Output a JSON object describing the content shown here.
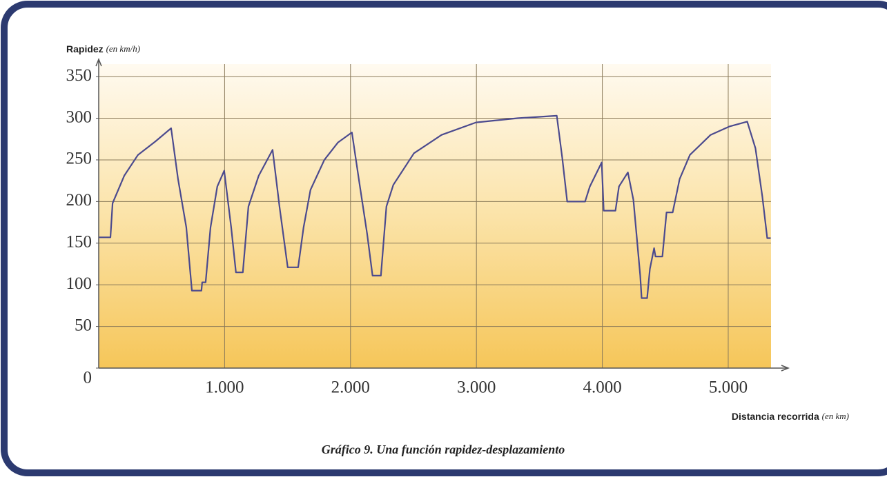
{
  "chart_data": {
    "type": "line",
    "caption": "Gráfico 9. Una función rapidez-desplazamiento",
    "y_label": "Rapidez",
    "y_label_unit": "(en km/h)",
    "x_label": "Distancia recorrida",
    "x_label_unit": "(en km)",
    "xlim": [
      0,
      5340
    ],
    "ylim": [
      0,
      365
    ],
    "xticks": [
      {
        "value": 1000,
        "label": "1.000"
      },
      {
        "value": 2000,
        "label": "2.000"
      },
      {
        "value": 3000,
        "label": "3.000"
      },
      {
        "value": 4000,
        "label": "4.000"
      },
      {
        "value": 5000,
        "label": "5.000"
      }
    ],
    "yticks": [
      0,
      50,
      100,
      150,
      200,
      250,
      300,
      350
    ],
    "grid": true,
    "series": [
      {
        "color": "#4b4a8e",
        "x": [
          0,
          93,
          110,
          203,
          312,
          449,
          575,
          630,
          696,
          740,
          816,
          822,
          849,
          888,
          942,
          997,
          1052,
          1090,
          1145,
          1189,
          1271,
          1381,
          1436,
          1501,
          1584,
          1627,
          1682,
          1792,
          1901,
          2011,
          2066,
          2132,
          2175,
          2241,
          2285,
          2340,
          2504,
          2723,
          2997,
          3326,
          3638,
          3682,
          3721,
          3863,
          3901,
          3995,
          4011,
          4104,
          4132,
          4203,
          4247,
          4301,
          4312,
          4356,
          4378,
          4411,
          4422,
          4477,
          4510,
          4559,
          4614,
          4696,
          4860,
          5008,
          5151,
          5216,
          5271,
          5310,
          5337
        ],
        "values": [
          157,
          157,
          198,
          231,
          256,
          272,
          288,
          227,
          169,
          93,
          93,
          103,
          103,
          169,
          218,
          237,
          169,
          115,
          115,
          194,
          231,
          262,
          194,
          121,
          121,
          169,
          214,
          250,
          271,
          283,
          227,
          161,
          111,
          111,
          194,
          220,
          258,
          280,
          295,
          300,
          303,
          252,
          200,
          200,
          218,
          247,
          189,
          189,
          218,
          235,
          202,
          111,
          84,
          84,
          119,
          144,
          134,
          134,
          187,
          187,
          227,
          256,
          280,
          290,
          296,
          264,
          206,
          156,
          156
        ]
      }
    ]
  }
}
